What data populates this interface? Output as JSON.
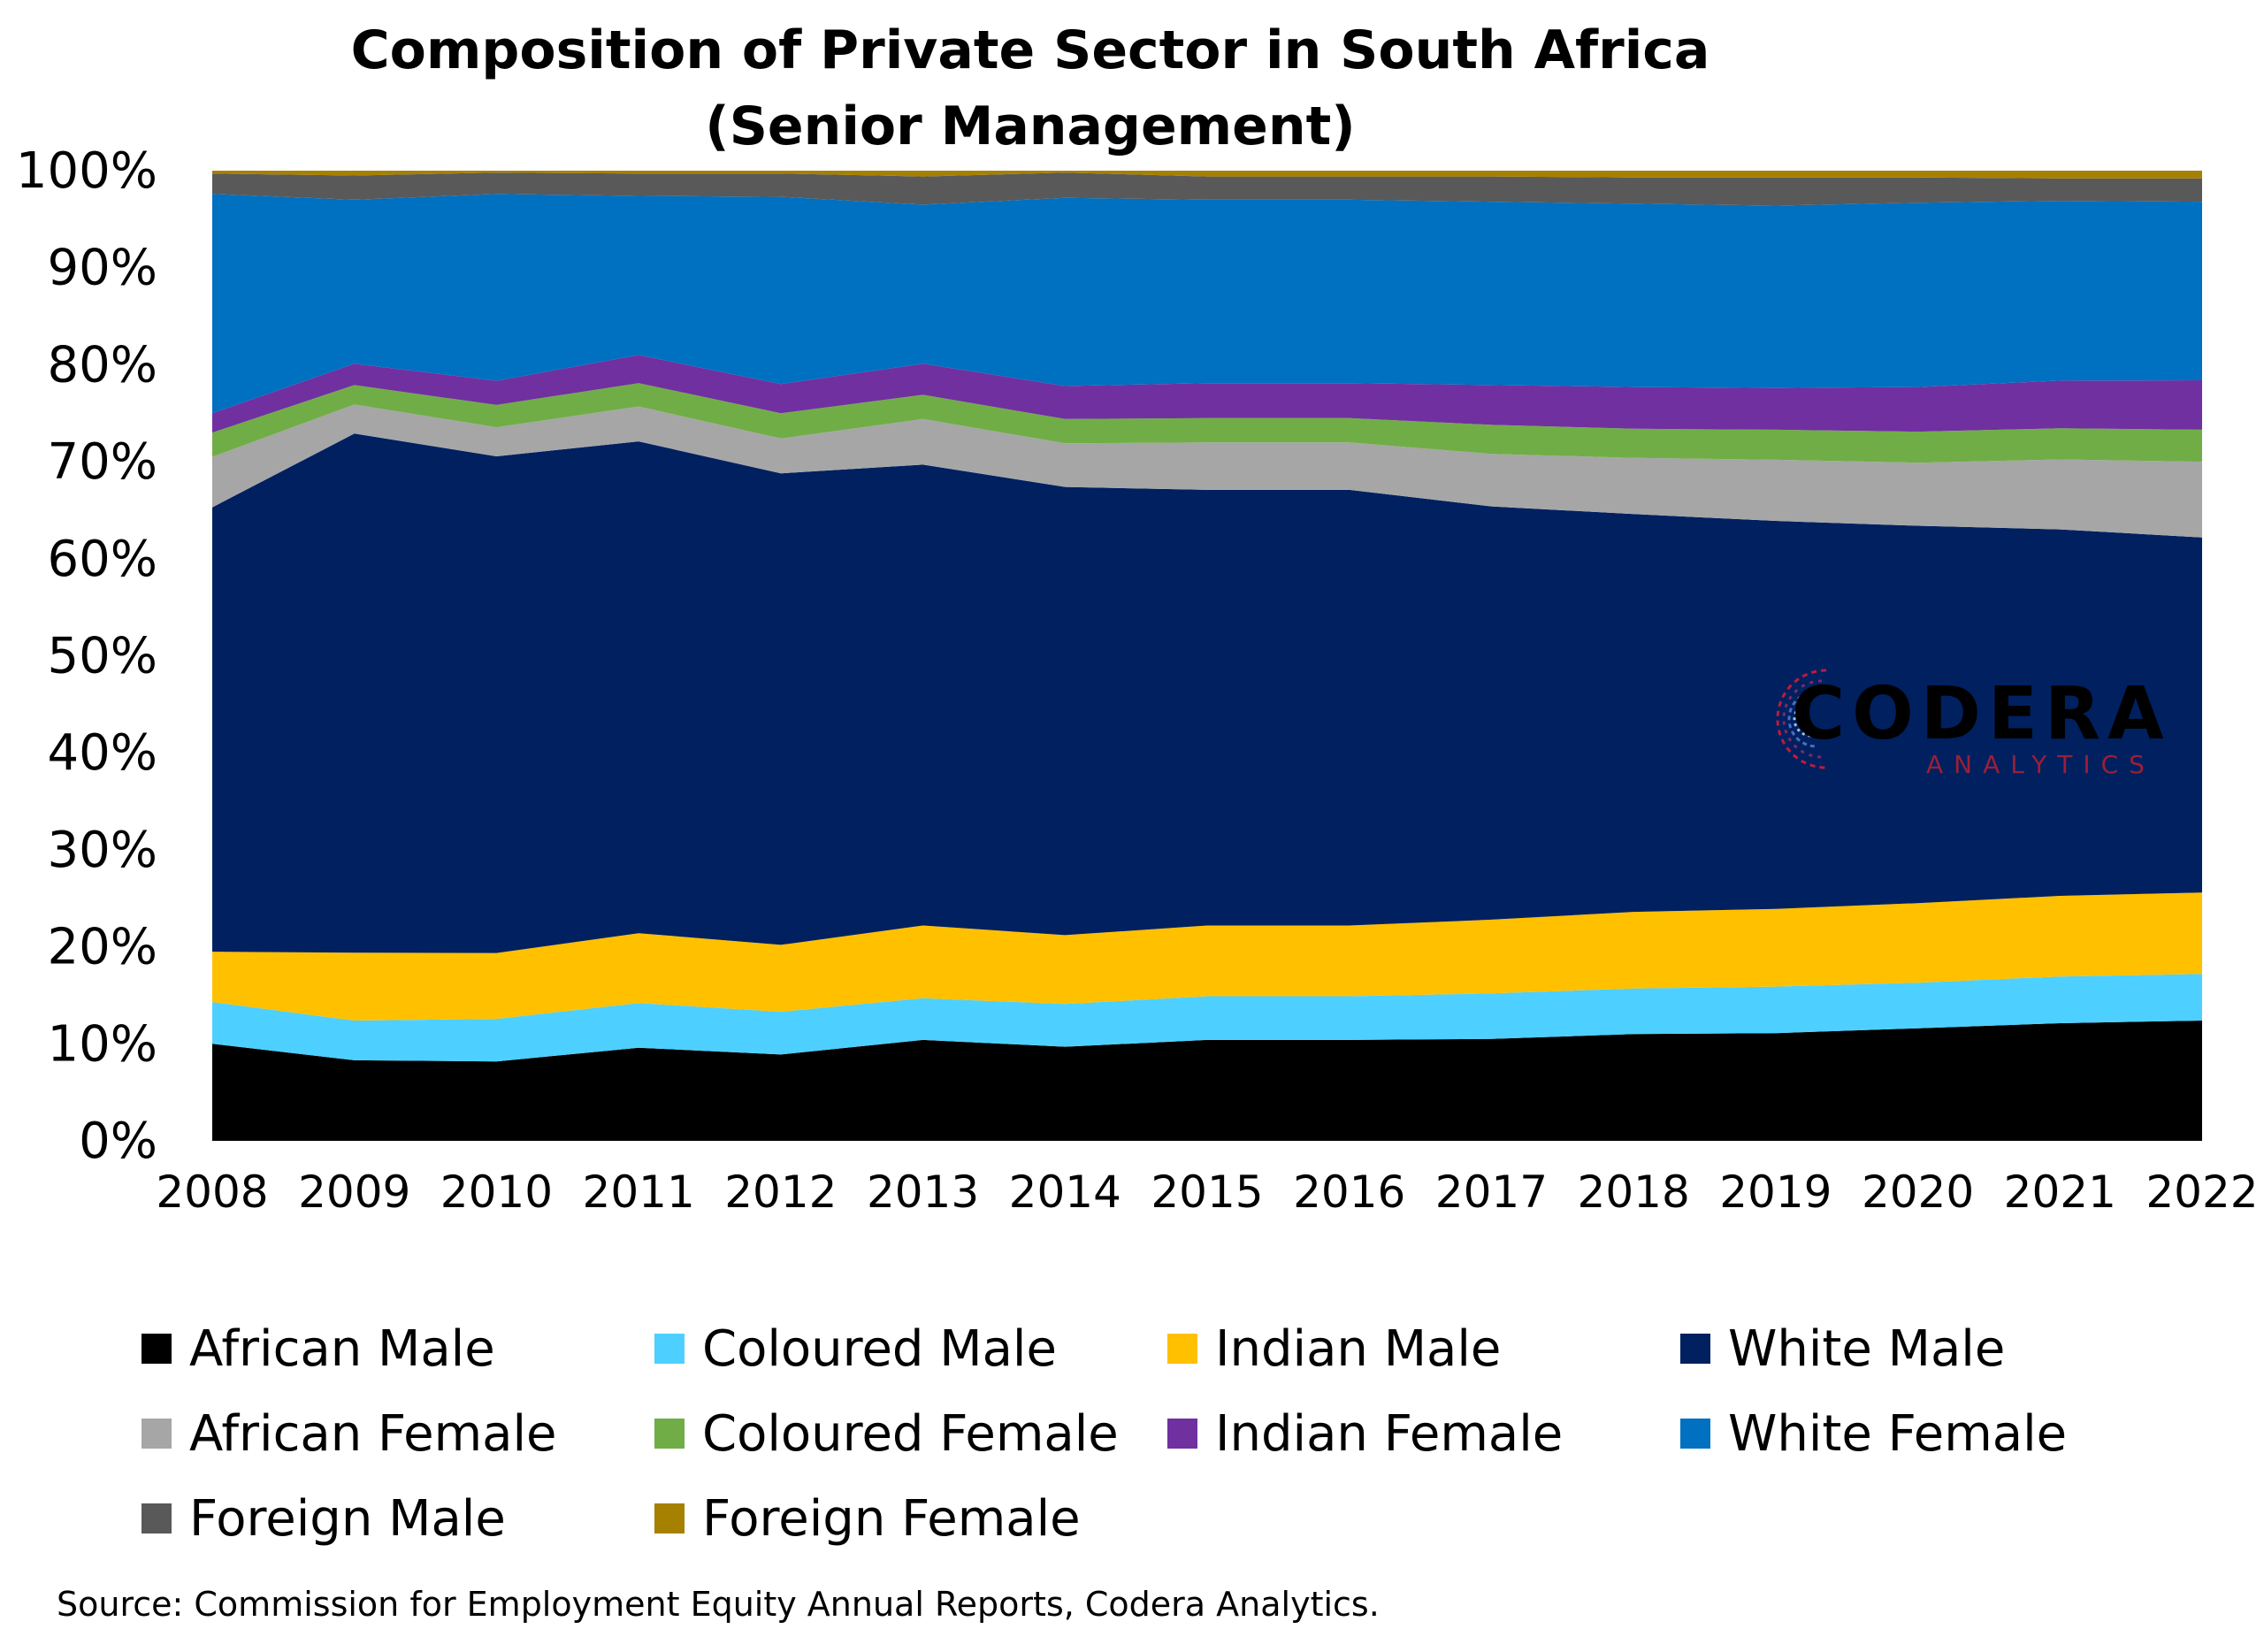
{
  "chart_data": {
    "type": "area",
    "stacked": true,
    "normalized": true,
    "title": [
      "Composition of Private Sector in South Africa",
      "(Senior Management)"
    ],
    "xlabel": "",
    "ylabel": "",
    "x": [
      "2008",
      "2009",
      "2010",
      "2011",
      "2012",
      "2013",
      "2014",
      "2015",
      "2016",
      "2017",
      "2018",
      "2019",
      "2020",
      "2021",
      "2022"
    ],
    "ylim": [
      0,
      100
    ],
    "yticks": [
      "0%",
      "10%",
      "20%",
      "30%",
      "40%",
      "50%",
      "60%",
      "70%",
      "80%",
      "90%",
      "100%"
    ],
    "grid": false,
    "legend_position": "bottom",
    "series": [
      {
        "name": "African Male",
        "color": "#000000",
        "values": [
          10.0,
          8.3,
          8.2,
          9.6,
          8.9,
          10.4,
          9.7,
          10.4,
          10.4,
          10.5,
          11.0,
          11.1,
          11.6,
          12.1,
          12.4
        ]
      },
      {
        "name": "Coloured Male",
        "color": "#4dd0ff",
        "values": [
          4.3,
          4.1,
          4.4,
          4.6,
          4.4,
          4.3,
          4.4,
          4.5,
          4.5,
          4.7,
          4.7,
          4.8,
          4.7,
          4.8,
          4.8
        ]
      },
      {
        "name": "Indian Male",
        "color": "#ffc000",
        "values": [
          5.2,
          7.0,
          6.8,
          7.2,
          6.9,
          7.5,
          7.1,
          7.3,
          7.3,
          7.6,
          7.9,
          8.0,
          8.2,
          8.3,
          8.4
        ]
      },
      {
        "name": "White Male",
        "color": "#002060",
        "values": [
          45.8,
          53.5,
          51.3,
          50.7,
          48.6,
          47.5,
          46.2,
          44.9,
          44.9,
          42.6,
          41.0,
          40.0,
          38.9,
          37.7,
          36.6
        ]
      },
      {
        "name": "African Female",
        "color": "#a6a6a6",
        "values": [
          5.2,
          3.0,
          3.0,
          3.6,
          3.6,
          4.7,
          4.5,
          4.9,
          4.9,
          5.4,
          5.8,
          6.3,
          6.5,
          7.2,
          7.8
        ]
      },
      {
        "name": "Coloured Female",
        "color": "#70ad47",
        "values": [
          2.5,
          2.0,
          2.3,
          2.4,
          2.6,
          2.5,
          2.5,
          2.5,
          2.5,
          3.0,
          3.0,
          3.1,
          3.2,
          3.2,
          3.3
        ]
      },
      {
        "name": "Indian Female",
        "color": "#7030a0",
        "values": [
          2.0,
          2.2,
          2.5,
          2.9,
          3.0,
          3.2,
          3.4,
          3.6,
          3.6,
          4.1,
          4.3,
          4.3,
          4.6,
          4.9,
          5.1
        ]
      },
      {
        "name": "White Female",
        "color": "#0070c0",
        "values": [
          22.6,
          16.9,
          19.3,
          16.4,
          19.3,
          16.4,
          19.4,
          18.9,
          18.9,
          18.9,
          18.9,
          18.8,
          19.0,
          18.5,
          18.4
        ]
      },
      {
        "name": "Foreign Male",
        "color": "#595959",
        "values": [
          2.1,
          2.5,
          2.2,
          2.3,
          2.4,
          2.9,
          2.6,
          2.4,
          2.4,
          2.6,
          2.7,
          2.9,
          2.6,
          2.3,
          2.4
        ]
      },
      {
        "name": "Foreign Female",
        "color": "#a68000",
        "values": [
          0.3,
          0.5,
          0.2,
          0.3,
          0.3,
          0.6,
          0.2,
          0.6,
          0.6,
          0.6,
          0.7,
          0.7,
          0.7,
          0.8,
          0.8
        ]
      }
    ]
  },
  "logo": {
    "word": "CODERA",
    "sub": "ANALYTICS"
  },
  "source": "Source: Commission for Employment Equity Annual Reports, Codera Analytics."
}
